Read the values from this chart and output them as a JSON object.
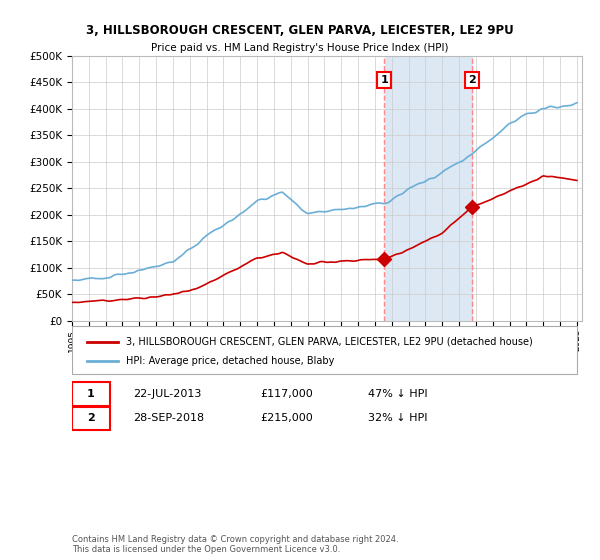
{
  "title": "3, HILLSBOROUGH CRESCENT, GLEN PARVA, LEICESTER, LE2 9PU",
  "subtitle": "Price paid vs. HM Land Registry's House Price Index (HPI)",
  "x_start_year": 1995,
  "x_end_year": 2025,
  "ylim": [
    0,
    500000
  ],
  "yticks": [
    0,
    50000,
    100000,
    150000,
    200000,
    250000,
    300000,
    350000,
    400000,
    450000,
    500000
  ],
  "sale1_date": "22-JUL-2013",
  "sale1_price": 117000,
  "sale1_hpi_diff": "47% ↓ HPI",
  "sale1_x": 2013.55,
  "sale2_date": "28-SEP-2018",
  "sale2_price": 215000,
  "sale2_hpi_diff": "32% ↓ HPI",
  "sale2_x": 2018.75,
  "legend_property": "3, HILLSBOROUGH CRESCENT, GLEN PARVA, LEICESTER, LE2 9PU (detached house)",
  "legend_hpi": "HPI: Average price, detached house, Blaby",
  "footnote": "Contains HM Land Registry data © Crown copyright and database right 2024.\nThis data is licensed under the Open Government Licence v3.0.",
  "hpi_color": "#6baed6",
  "property_color": "#cc0000",
  "shaded_color": "#dce9f5",
  "vline_color": "#ff8888",
  "background_color": "#ffffff",
  "grid_color": "#cccccc"
}
